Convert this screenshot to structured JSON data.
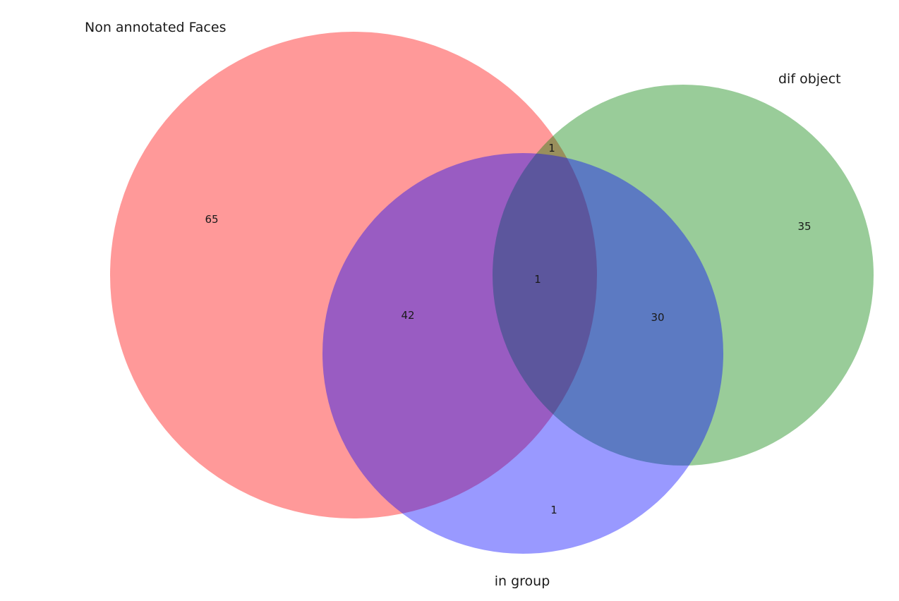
{
  "venn": {
    "sets": [
      {
        "key": "A",
        "label": "Non annotated Faces",
        "color": "#ff0000"
      },
      {
        "key": "B",
        "label": "dif object",
        "color": "#008000"
      },
      {
        "key": "C",
        "label": "in group",
        "color": "#0000ff"
      }
    ],
    "regions": {
      "A_only": "65",
      "B_only": "35",
      "C_only": "1",
      "A_and_B_only": "1",
      "A_and_C_only": "42",
      "B_and_C_only": "30",
      "A_B_C": "1"
    },
    "fill_opacity": 0.4
  }
}
